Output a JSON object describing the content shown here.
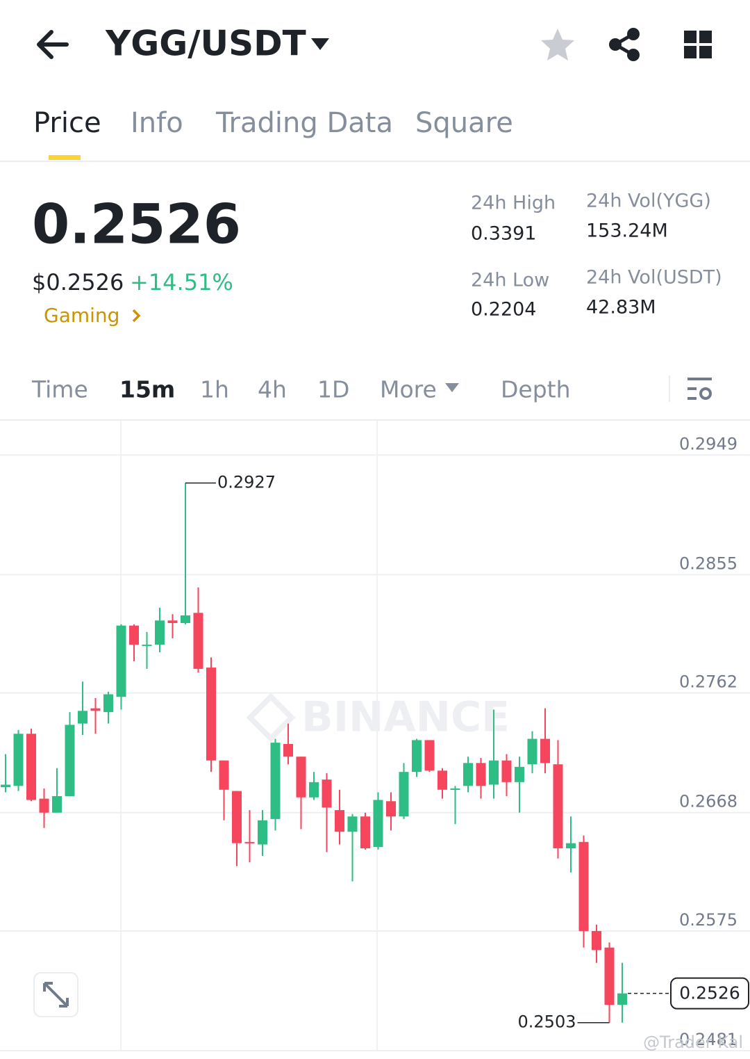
{
  "header": {
    "pair": "YGG/USDT"
  },
  "tabs": [
    "Price",
    "Info",
    "Trading Data",
    "Square"
  ],
  "price": {
    "last": "0.2526",
    "usd": "$0.2526",
    "change": "+14.51%",
    "sector": "Gaming"
  },
  "stats": [
    {
      "label": "24h High",
      "value": "0.3391"
    },
    {
      "label": "24h Low",
      "value": "0.2204"
    },
    {
      "label": "24h Vol(YGG)",
      "value": "153.24M"
    },
    {
      "label": "24h Vol(USDT)",
      "value": "42.83M"
    }
  ],
  "intervals": [
    "Time",
    "15m",
    "1h",
    "4h",
    "1D",
    "More",
    "Depth"
  ],
  "chart_data": {
    "type": "candlestick",
    "colors": {
      "up": "#2ebd85",
      "down": "#f6465d"
    },
    "open": [
      0.2688,
      0.2689,
      0.273,
      0.2679,
      0.2668,
      0.2681,
      0.2738,
      0.275,
      0.2747,
      0.2759,
      0.2815,
      0.2799,
      0.28,
      0.2819,
      0.2817,
      0.2825,
      0.2782,
      0.2709,
      0.2685,
      0.2645,
      0.2643,
      0.2663,
      0.2722,
      0.2712,
      0.268,
      0.2694,
      0.267,
      0.2653,
      0.2665,
      0.2641,
      0.2677,
      0.2665,
      0.27,
      0.2725,
      0.2701,
      0.2686,
      0.2689,
      0.2707,
      0.269,
      0.2709,
      0.2692,
      0.2706,
      0.2726,
      0.2706,
      0.264,
      0.2645,
      0.2575,
      0.2562,
      0.2517
    ],
    "high": [
      0.2714,
      0.2733,
      0.2734,
      0.2687,
      0.2703,
      0.2747,
      0.2771,
      0.2758,
      0.2763,
      0.2816,
      0.2816,
      0.281,
      0.2829,
      0.2824,
      0.2927,
      0.2845,
      0.279,
      0.2709,
      0.2685,
      0.267,
      0.267,
      0.2726,
      0.2738,
      0.2712,
      0.27,
      0.2699,
      0.2686,
      0.2667,
      0.2668,
      0.2684,
      0.2684,
      0.2707,
      0.2726,
      0.2725,
      0.2703,
      0.2689,
      0.2712,
      0.2711,
      0.2749,
      0.2714,
      0.2712,
      0.2732,
      0.275,
      0.2725,
      0.2665,
      0.265,
      0.258,
      0.2566,
      0.255
    ],
    "low": [
      0.2684,
      0.2685,
      0.2677,
      0.2656,
      0.2668,
      0.2681,
      0.2729,
      0.273,
      0.2738,
      0.2749,
      0.2787,
      0.2781,
      0.2794,
      0.2805,
      0.2816,
      0.2778,
      0.27,
      0.2662,
      0.2626,
      0.2629,
      0.2634,
      0.2654,
      0.2706,
      0.2655,
      0.2678,
      0.2637,
      0.2643,
      0.2614,
      0.2639,
      0.2639,
      0.2654,
      0.2663,
      0.2696,
      0.27,
      0.2679,
      0.2659,
      0.2684,
      0.2679,
      0.2679,
      0.2681,
      0.2668,
      0.2699,
      0.2699,
      0.2632,
      0.2621,
      0.2562,
      0.255,
      0.2503,
      0.2503
    ],
    "close": [
      0.269,
      0.273,
      0.2678,
      0.2668,
      0.2681,
      0.2737,
      0.2748,
      0.2748,
      0.2761,
      0.2815,
      0.28,
      0.28,
      0.2819,
      0.2817,
      0.2823,
      0.2781,
      0.2709,
      0.2686,
      0.2644,
      0.2644,
      0.2662,
      0.2723,
      0.2712,
      0.268,
      0.2692,
      0.2672,
      0.2653,
      0.2665,
      0.264,
      0.2678,
      0.2665,
      0.27,
      0.2725,
      0.2701,
      0.2686,
      0.2687,
      0.2707,
      0.2689,
      0.2709,
      0.2692,
      0.2704,
      0.2726,
      0.2707,
      0.264,
      0.2644,
      0.2575,
      0.256,
      0.2517,
      0.2526
    ],
    "ylim": [
      0.2481,
      0.2976
    ],
    "yticks": [
      0.2949,
      0.2855,
      0.2762,
      0.2668,
      0.2575,
      0.2481
    ],
    "grid": true,
    "high_marker": 0.2927,
    "low_marker": 0.2503,
    "last_price": 0.2526,
    "watermark": "BINANCE"
  },
  "footer": {
    "watermark": "@Trader Kal"
  }
}
